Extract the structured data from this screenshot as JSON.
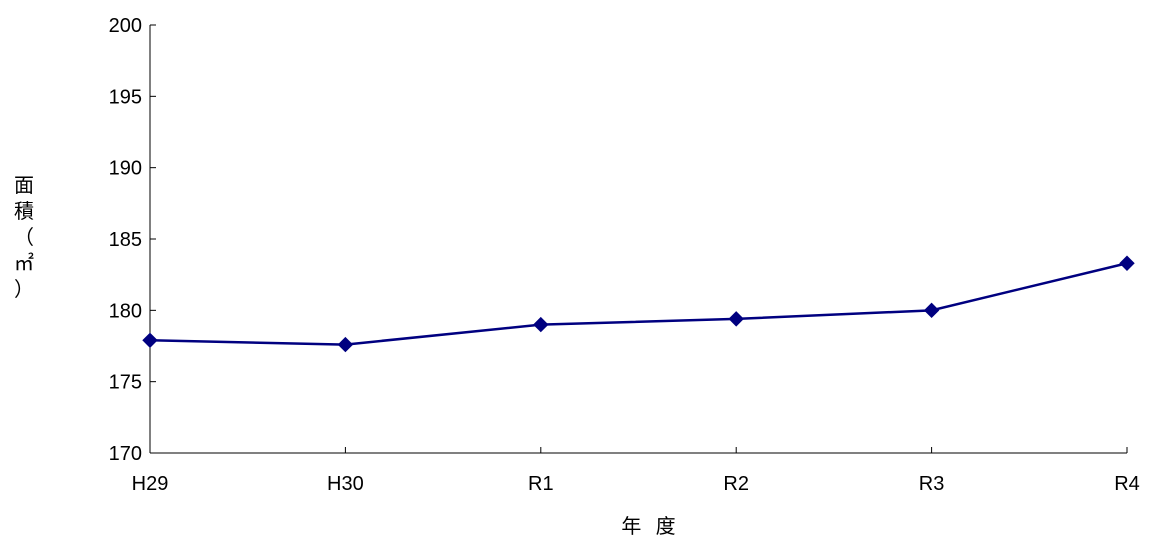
{
  "chart_data": {
    "type": "line",
    "title": "",
    "xlabel": "年 度",
    "ylabel": "面積（㎡）",
    "categories": [
      "H29",
      "H30",
      "R1",
      "R2",
      "R3",
      "R4"
    ],
    "series": [
      {
        "values": [
          177.9,
          177.6,
          179.0,
          179.4,
          180.0,
          183.3
        ],
        "color": "#000080"
      }
    ],
    "ylim": [
      170,
      200
    ],
    "yticks": [
      170,
      175,
      180,
      185,
      190,
      195,
      200
    ],
    "grid": false,
    "legend": "none",
    "marker": "diamond"
  }
}
